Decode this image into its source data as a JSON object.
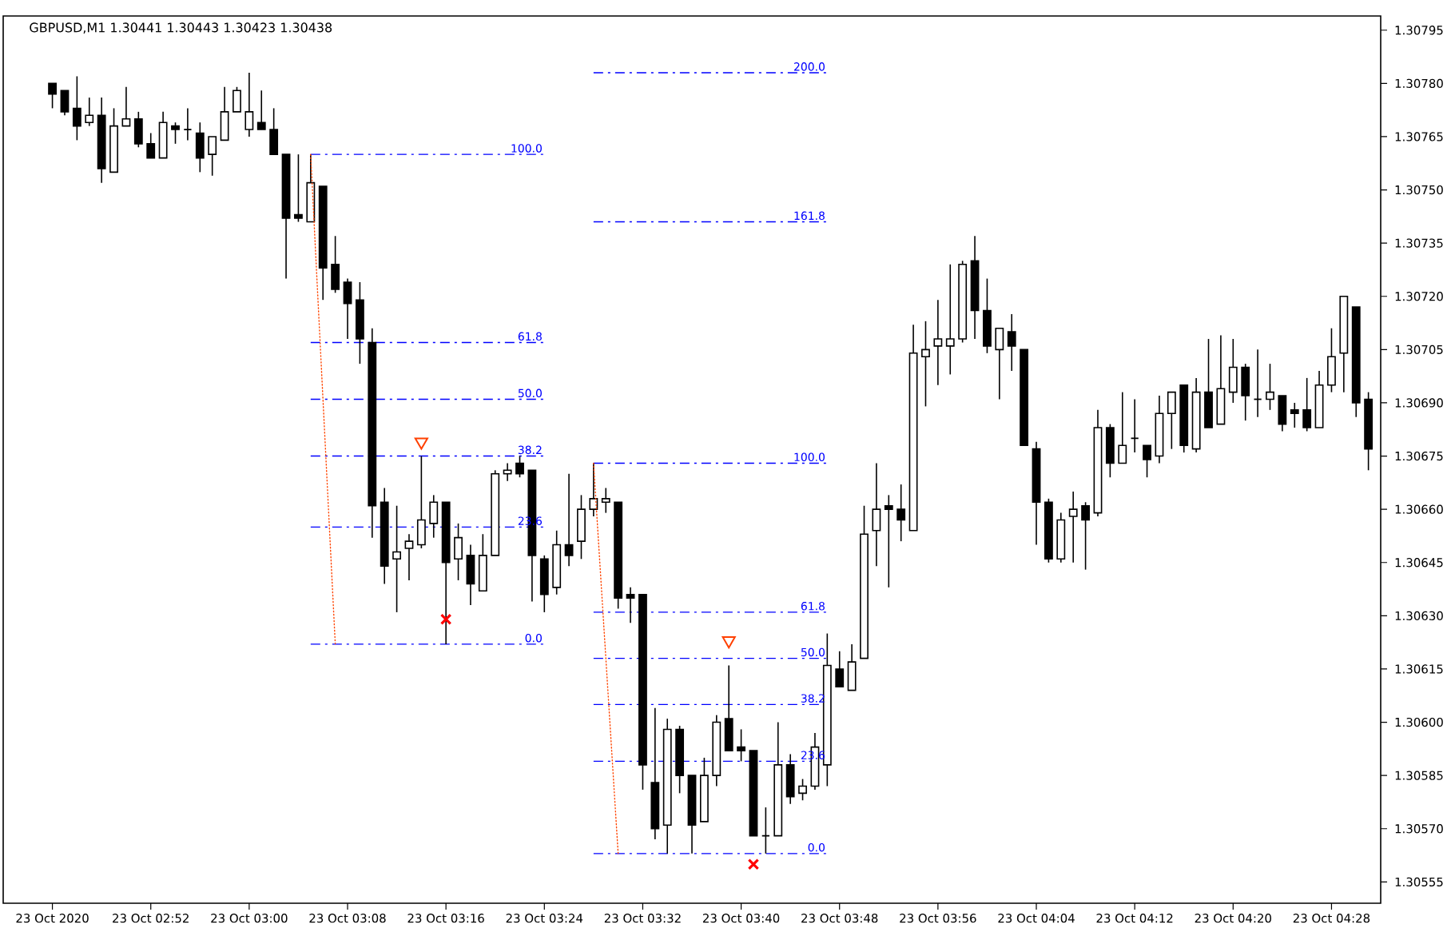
{
  "chart_data": {
    "type": "candlestick",
    "title": "GBPUSD,M1  1.30441 1.30443 1.30423 1.30438",
    "color": "#000000",
    "x": [
      "2020-10-23T02:44",
      "2020-10-23T02:45",
      "2020-10-23T02:46",
      "2020-10-23T02:47",
      "2020-10-23T02:48",
      "2020-10-23T02:49",
      "2020-10-23T02:50",
      "2020-10-23T02:51",
      "2020-10-23T02:52",
      "2020-10-23T02:53",
      "2020-10-23T02:54",
      "2020-10-23T02:55",
      "2020-10-23T02:56",
      "2020-10-23T02:57",
      "2020-10-23T02:58",
      "2020-10-23T02:59",
      "2020-10-23T03:00",
      "2020-10-23T03:01",
      "2020-10-23T03:02",
      "2020-10-23T03:03",
      "2020-10-23T03:04",
      "2020-10-23T03:05",
      "2020-10-23T03:06",
      "2020-10-23T03:07",
      "2020-10-23T03:08",
      "2020-10-23T03:09",
      "2020-10-23T03:10",
      "2020-10-23T03:11",
      "2020-10-23T03:12",
      "2020-10-23T03:13",
      "2020-10-23T03:14",
      "2020-10-23T03:15",
      "2020-10-23T03:16",
      "2020-10-23T03:17",
      "2020-10-23T03:18",
      "2020-10-23T03:19",
      "2020-10-23T03:20",
      "2020-10-23T03:21",
      "2020-10-23T03:22",
      "2020-10-23T03:23",
      "2020-10-23T03:24",
      "2020-10-23T03:25",
      "2020-10-23T03:26",
      "2020-10-23T03:27",
      "2020-10-23T03:28",
      "2020-10-23T03:29",
      "2020-10-23T03:30",
      "2020-10-23T03:31",
      "2020-10-23T03:32",
      "2020-10-23T03:33",
      "2020-10-23T03:34",
      "2020-10-23T03:35",
      "2020-10-23T03:36",
      "2020-10-23T03:37",
      "2020-10-23T03:38",
      "2020-10-23T03:39",
      "2020-10-23T03:40",
      "2020-10-23T03:41",
      "2020-10-23T03:42",
      "2020-10-23T03:43",
      "2020-10-23T03:44",
      "2020-10-23T03:45",
      "2020-10-23T03:46",
      "2020-10-23T03:47",
      "2020-10-23T03:48",
      "2020-10-23T03:49",
      "2020-10-23T03:50",
      "2020-10-23T03:51",
      "2020-10-23T03:52",
      "2020-10-23T03:53",
      "2020-10-23T03:54",
      "2020-10-23T03:55",
      "2020-10-23T03:56",
      "2020-10-23T03:57",
      "2020-10-23T03:58",
      "2020-10-23T03:59",
      "2020-10-23T04:00",
      "2020-10-23T04:01",
      "2020-10-23T04:02",
      "2020-10-23T04:03",
      "2020-10-23T04:04",
      "2020-10-23T04:05",
      "2020-10-23T04:06",
      "2020-10-23T04:07",
      "2020-10-23T04:08",
      "2020-10-23T04:09",
      "2020-10-23T04:10",
      "2020-10-23T04:11",
      "2020-10-23T04:12",
      "2020-10-23T04:13",
      "2020-10-23T04:14",
      "2020-10-23T04:15",
      "2020-10-23T04:16",
      "2020-10-23T04:17",
      "2020-10-23T04:18",
      "2020-10-23T04:19",
      "2020-10-23T04:20",
      "2020-10-23T04:21",
      "2020-10-23T04:22",
      "2020-10-23T04:23",
      "2020-10-23T04:24",
      "2020-10-23T04:25",
      "2020-10-23T04:26",
      "2020-10-23T04:27",
      "2020-10-23T04:28",
      "2020-10-23T04:29",
      "2020-10-23T04:30",
      "2020-10-23T04:31"
    ],
    "ohlc": [
      [
        1.3078,
        1.3078,
        1.30773,
        1.30777
      ],
      [
        1.30778,
        1.30778,
        1.30771,
        1.30772
      ],
      [
        1.30773,
        1.30782,
        1.30764,
        1.30768
      ],
      [
        1.30769,
        1.30776,
        1.30768,
        1.30771
      ],
      [
        1.30771,
        1.30776,
        1.30752,
        1.30756
      ],
      [
        1.30755,
        1.30773,
        1.30755,
        1.30768
      ],
      [
        1.30768,
        1.30779,
        1.30768,
        1.3077
      ],
      [
        1.3077,
        1.30772,
        1.30762,
        1.30763
      ],
      [
        1.30763,
        1.30766,
        1.30759,
        1.30759
      ],
      [
        1.30759,
        1.30772,
        1.30759,
        1.30769
      ],
      [
        1.30768,
        1.30769,
        1.30763,
        1.30767
      ],
      [
        1.30767,
        1.30773,
        1.30764,
        1.30767
      ],
      [
        1.30766,
        1.30769,
        1.30755,
        1.30759
      ],
      [
        1.3076,
        1.30765,
        1.30754,
        1.30765
      ],
      [
        1.30764,
        1.30779,
        1.30764,
        1.30772
      ],
      [
        1.30772,
        1.30779,
        1.30772,
        1.30778
      ],
      [
        1.30767,
        1.30783,
        1.30765,
        1.30772
      ],
      [
        1.30769,
        1.30778,
        1.30767,
        1.30767
      ],
      [
        1.30767,
        1.30773,
        1.3076,
        1.3076
      ],
      [
        1.3076,
        1.3076,
        1.30725,
        1.30742
      ],
      [
        1.30743,
        1.3076,
        1.30741,
        1.30742
      ],
      [
        1.30741,
        1.3076,
        1.30741,
        1.30752
      ],
      [
        1.30751,
        1.30751,
        1.30719,
        1.30728
      ],
      [
        1.30729,
        1.30737,
        1.30721,
        1.30722
      ],
      [
        1.30724,
        1.30725,
        1.30708,
        1.30718
      ],
      [
        1.30719,
        1.30724,
        1.30701,
        1.30708
      ],
      [
        1.30707,
        1.30711,
        1.30652,
        1.30661
      ],
      [
        1.30662,
        1.30666,
        1.30639,
        1.30644
      ],
      [
        1.30646,
        1.30661,
        1.30631,
        1.30648
      ],
      [
        1.30649,
        1.30653,
        1.3064,
        1.30651
      ],
      [
        1.3065,
        1.30675,
        1.30649,
        1.30657
      ],
      [
        1.30656,
        1.30664,
        1.30652,
        1.30662
      ],
      [
        1.30662,
        1.30662,
        1.30622,
        1.30645
      ],
      [
        1.30646,
        1.30656,
        1.3064,
        1.30652
      ],
      [
        1.30647,
        1.3065,
        1.30633,
        1.30639
      ],
      [
        1.30637,
        1.30653,
        1.30637,
        1.30647
      ],
      [
        1.30647,
        1.30671,
        1.30647,
        1.3067
      ],
      [
        1.3067,
        1.30673,
        1.30668,
        1.30671
      ],
      [
        1.30673,
        1.30675,
        1.30669,
        1.3067
      ],
      [
        1.30671,
        1.30671,
        1.30634,
        1.30647
      ],
      [
        1.30646,
        1.30647,
        1.30631,
        1.30636
      ],
      [
        1.30638,
        1.30654,
        1.30636,
        1.3065
      ],
      [
        1.3065,
        1.3067,
        1.30644,
        1.30647
      ],
      [
        1.30651,
        1.30664,
        1.30646,
        1.3066
      ],
      [
        1.3066,
        1.30673,
        1.30658,
        1.30663
      ],
      [
        1.30662,
        1.30666,
        1.30659,
        1.30663
      ],
      [
        1.30662,
        1.30662,
        1.30632,
        1.30635
      ],
      [
        1.30636,
        1.30638,
        1.30628,
        1.30635
      ],
      [
        1.30636,
        1.30636,
        1.30581,
        1.30588
      ],
      [
        1.30583,
        1.30604,
        1.30567,
        1.3057
      ],
      [
        1.30571,
        1.30601,
        1.30563,
        1.30598
      ],
      [
        1.30598,
        1.30599,
        1.3058,
        1.30585
      ],
      [
        1.30585,
        1.30585,
        1.30563,
        1.30571
      ],
      [
        1.30572,
        1.3059,
        1.30572,
        1.30585
      ],
      [
        1.30585,
        1.30602,
        1.30582,
        1.306
      ],
      [
        1.30601,
        1.30616,
        1.30592,
        1.30592
      ],
      [
        1.30593,
        1.30598,
        1.30589,
        1.30592
      ],
      [
        1.30592,
        1.30592,
        1.30568,
        1.30568
      ],
      [
        1.30568,
        1.30576,
        1.30563,
        1.30568
      ],
      [
        1.30568,
        1.306,
        1.30568,
        1.30588
      ],
      [
        1.30588,
        1.30591,
        1.30577,
        1.30579
      ],
      [
        1.3058,
        1.30584,
        1.30578,
        1.30582
      ],
      [
        1.30582,
        1.30597,
        1.30581,
        1.30593
      ],
      [
        1.30588,
        1.30625,
        1.30582,
        1.30616
      ],
      [
        1.30615,
        1.3062,
        1.3061,
        1.3061
      ],
      [
        1.30609,
        1.30622,
        1.30609,
        1.30617
      ],
      [
        1.30618,
        1.30661,
        1.30618,
        1.30653
      ],
      [
        1.30654,
        1.30673,
        1.30644,
        1.3066
      ],
      [
        1.30661,
        1.30664,
        1.30638,
        1.3066
      ],
      [
        1.3066,
        1.30667,
        1.30651,
        1.30657
      ],
      [
        1.30654,
        1.30712,
        1.30654,
        1.30704
      ],
      [
        1.30703,
        1.30713,
        1.30689,
        1.30705
      ],
      [
        1.30706,
        1.30719,
        1.30695,
        1.30708
      ],
      [
        1.30706,
        1.30729,
        1.30698,
        1.30708
      ],
      [
        1.30708,
        1.3073,
        1.30707,
        1.30729
      ],
      [
        1.3073,
        1.30737,
        1.30708,
        1.30716
      ],
      [
        1.30716,
        1.30725,
        1.30704,
        1.30706
      ],
      [
        1.30705,
        1.30711,
        1.30691,
        1.30711
      ],
      [
        1.3071,
        1.30715,
        1.30699,
        1.30706
      ],
      [
        1.30705,
        1.30705,
        1.30678,
        1.30678
      ],
      [
        1.30677,
        1.30679,
        1.3065,
        1.30662
      ],
      [
        1.30662,
        1.30663,
        1.30645,
        1.30646
      ],
      [
        1.30646,
        1.30659,
        1.30645,
        1.30657
      ],
      [
        1.30658,
        1.30665,
        1.30645,
        1.3066
      ],
      [
        1.30661,
        1.30662,
        1.30643,
        1.30657
      ],
      [
        1.30659,
        1.30688,
        1.30658,
        1.30683
      ],
      [
        1.30683,
        1.30684,
        1.30669,
        1.30673
      ],
      [
        1.30673,
        1.30693,
        1.30673,
        1.30678
      ],
      [
        1.3068,
        1.30691,
        1.30676,
        1.3068
      ],
      [
        1.30678,
        1.30678,
        1.30669,
        1.30674
      ],
      [
        1.30675,
        1.30692,
        1.30673,
        1.30687
      ],
      [
        1.30687,
        1.30693,
        1.30677,
        1.30693
      ],
      [
        1.30695,
        1.30695,
        1.30676,
        1.30678
      ],
      [
        1.30677,
        1.30697,
        1.30676,
        1.30693
      ],
      [
        1.30693,
        1.30708,
        1.30683,
        1.30683
      ],
      [
        1.30684,
        1.30709,
        1.30684,
        1.30694
      ],
      [
        1.30693,
        1.30708,
        1.3069,
        1.307
      ],
      [
        1.307,
        1.30701,
        1.30685,
        1.30692
      ],
      [
        1.30691,
        1.30705,
        1.30686,
        1.30691
      ],
      [
        1.30691,
        1.30701,
        1.30688,
        1.30693
      ],
      [
        1.30692,
        1.30692,
        1.30682,
        1.30684
      ],
      [
        1.30688,
        1.3069,
        1.30683,
        1.30687
      ],
      [
        1.30688,
        1.30697,
        1.30682,
        1.30683
      ],
      [
        1.30683,
        1.30699,
        1.30683,
        1.30695
      ],
      [
        1.30695,
        1.30711,
        1.30693,
        1.30703
      ],
      [
        1.30704,
        1.3072,
        1.30693,
        1.3072
      ],
      [
        1.30717,
        1.30717,
        1.30686,
        1.3069
      ],
      [
        1.30691,
        1.30693,
        1.30671,
        1.30677
      ]
    ],
    "series": [
      {
        "type": "line",
        "color": "#0000ff",
        "line_style": "dashed",
        "x": [
          "2020-10-23T03:05",
          "2020-10-23T03:24"
        ],
        "values": [
          1.3076,
          1.3076
        ]
      },
      {
        "type": "line",
        "color": "#0000ff",
        "line_style": "dashed",
        "x": [
          "2020-10-23T03:05",
          "2020-10-23T03:24"
        ],
        "values": [
          1.30707,
          1.30707
        ]
      },
      {
        "type": "line",
        "color": "#0000ff",
        "line_style": "dashed",
        "x": [
          "2020-10-23T03:05",
          "2020-10-23T03:24"
        ],
        "values": [
          1.30691,
          1.30691
        ]
      },
      {
        "type": "line",
        "color": "#0000ff",
        "line_style": "dashed",
        "x": [
          "2020-10-23T03:05",
          "2020-10-23T03:24"
        ],
        "values": [
          1.30675,
          1.30675
        ]
      },
      {
        "type": "line",
        "color": "#0000ff",
        "line_style": "dashed",
        "x": [
          "2020-10-23T03:05",
          "2020-10-23T03:24"
        ],
        "values": [
          1.30655,
          1.30655
        ]
      },
      {
        "type": "line",
        "color": "#0000ff",
        "line_style": "dashed",
        "x": [
          "2020-10-23T03:05",
          "2020-10-23T03:24"
        ],
        "values": [
          1.30622,
          1.30622
        ]
      },
      {
        "type": "line",
        "color": "#0000ff",
        "line_style": "dashed",
        "x": [
          "2020-10-23T03:28",
          "2020-10-23T03:47"
        ],
        "values": [
          1.30783,
          1.30783
        ]
      },
      {
        "type": "line",
        "color": "#0000ff",
        "line_style": "dashed",
        "x": [
          "2020-10-23T03:28",
          "2020-10-23T03:47"
        ],
        "values": [
          1.30741,
          1.30741
        ]
      },
      {
        "type": "line",
        "color": "#0000ff",
        "line_style": "dashed",
        "x": [
          "2020-10-23T03:28",
          "2020-10-23T03:47"
        ],
        "values": [
          1.30673,
          1.30673
        ]
      },
      {
        "type": "line",
        "color": "#0000ff",
        "line_style": "dashed",
        "x": [
          "2020-10-23T03:28",
          "2020-10-23T03:47"
        ],
        "values": [
          1.30631,
          1.30631
        ]
      },
      {
        "type": "line",
        "color": "#0000ff",
        "line_style": "dashed",
        "x": [
          "2020-10-23T03:28",
          "2020-10-23T03:47"
        ],
        "values": [
          1.30618,
          1.30618
        ]
      },
      {
        "type": "line",
        "color": "#0000ff",
        "line_style": "dashed",
        "x": [
          "2020-10-23T03:28",
          "2020-10-23T03:47"
        ],
        "values": [
          1.30605,
          1.30605
        ]
      },
      {
        "type": "line",
        "color": "#0000ff",
        "line_style": "dashed",
        "x": [
          "2020-10-23T03:28",
          "2020-10-23T03:47"
        ],
        "values": [
          1.30589,
          1.30589
        ]
      },
      {
        "type": "line",
        "color": "#0000ff",
        "line_style": "dashed",
        "x": [
          "2020-10-23T03:28",
          "2020-10-23T03:47"
        ],
        "values": [
          1.30563,
          1.30563
        ]
      },
      {
        "type": "line",
        "color": "#ff4500",
        "line_style": "dotted",
        "x": [
          "2020-10-23T03:05",
          "2020-10-23T03:07"
        ],
        "values": [
          1.3076,
          1.30622
        ]
      },
      {
        "type": "line",
        "color": "#ff4500",
        "line_style": "dotted",
        "x": [
          "2020-10-23T03:28",
          "2020-10-23T03:30"
        ],
        "values": [
          1.30673,
          1.30563
        ]
      },
      {
        "type": "scatter",
        "color": "#ff4000",
        "marker": "triangle",
        "x": [
          "2020-10-23T03:14",
          "2020-10-23T03:39"
        ],
        "values": [
          1.30679,
          1.30623
        ]
      },
      {
        "type": "scatter",
        "color": "#ff0000",
        "marker": "cross",
        "x": [
          "2020-10-23T03:16",
          "2020-10-23T03:41"
        ],
        "values": [
          1.30629,
          1.3056
        ]
      }
    ],
    "annotations": [
      {
        "text": "100.0",
        "x": "2020-10-23T03:24",
        "y": 1.3076
      },
      {
        "text": "61.8",
        "x": "2020-10-23T03:24",
        "y": 1.30707
      },
      {
        "text": "50.0",
        "x": "2020-10-23T03:24",
        "y": 1.30691
      },
      {
        "text": "38.2",
        "x": "2020-10-23T03:24",
        "y": 1.30675
      },
      {
        "text": "23.6",
        "x": "2020-10-23T03:24",
        "y": 1.30655
      },
      {
        "text": "0.0",
        "x": "2020-10-23T03:24",
        "y": 1.30622
      },
      {
        "text": "200.0",
        "x": "2020-10-23T03:47",
        "y": 1.30783
      },
      {
        "text": "161.8",
        "x": "2020-10-23T03:47",
        "y": 1.30741
      },
      {
        "text": "100.0",
        "x": "2020-10-23T03:47",
        "y": 1.30673
      },
      {
        "text": "61.8",
        "x": "2020-10-23T03:47",
        "y": 1.30631
      },
      {
        "text": "50.0",
        "x": "2020-10-23T03:47",
        "y": 1.30618
      },
      {
        "text": "38.2",
        "x": "2020-10-23T03:47",
        "y": 1.30605
      },
      {
        "text": "23.6",
        "x": "2020-10-23T03:47",
        "y": 1.30589
      },
      {
        "text": "0.0",
        "x": "2020-10-23T03:47",
        "y": 1.30563
      }
    ],
    "xlim": [
      "2020-10-23T02:40",
      "2020-10-23T04:32"
    ],
    "xticks": [
      {
        "value": "2020-10-23T02:44",
        "label": "23 Oct 2020"
      },
      {
        "value": "2020-10-23T02:52",
        "label": "23 Oct 02:52"
      },
      {
        "value": "2020-10-23T03:00",
        "label": "23 Oct 03:00"
      },
      {
        "value": "2020-10-23T03:08",
        "label": "23 Oct 03:08"
      },
      {
        "value": "2020-10-23T03:16",
        "label": "23 Oct 03:16"
      },
      {
        "value": "2020-10-23T03:24",
        "label": "23 Oct 03:24"
      },
      {
        "value": "2020-10-23T03:32",
        "label": "23 Oct 03:32"
      },
      {
        "value": "2020-10-23T03:40",
        "label": "23 Oct 03:40"
      },
      {
        "value": "2020-10-23T03:48",
        "label": "23 Oct 03:48"
      },
      {
        "value": "2020-10-23T03:56",
        "label": "23 Oct 03:56"
      },
      {
        "value": "2020-10-23T04:04",
        "label": "23 Oct 04:04"
      },
      {
        "value": "2020-10-23T04:12",
        "label": "23 Oct 04:12"
      },
      {
        "value": "2020-10-23T04:20",
        "label": "23 Oct 04:20"
      },
      {
        "value": "2020-10-23T04:28",
        "label": "23 Oct 04:28"
      }
    ],
    "ylim": [
      1.30549,
      1.30799
    ],
    "yticks": [
      {
        "value": 1.30555,
        "label": "1.30555"
      },
      {
        "value": 1.3057,
        "label": "1.30570"
      },
      {
        "value": 1.30585,
        "label": "1.30585"
      },
      {
        "value": 1.306,
        "label": "1.30600"
      },
      {
        "value": 1.30615,
        "label": "1.30615"
      },
      {
        "value": 1.3063,
        "label": "1.30630"
      },
      {
        "value": 1.30645,
        "label": "1.30645"
      },
      {
        "value": 1.3066,
        "label": "1.30660"
      },
      {
        "value": 1.30675,
        "label": "1.30675"
      },
      {
        "value": 1.3069,
        "label": "1.30690"
      },
      {
        "value": 1.30705,
        "label": "1.30705"
      },
      {
        "value": 1.3072,
        "label": "1.30720"
      },
      {
        "value": 1.30735,
        "label": "1.30735"
      },
      {
        "value": 1.3075,
        "label": "1.30750"
      },
      {
        "value": 1.30765,
        "label": "1.30765"
      },
      {
        "value": 1.3078,
        "label": "1.30780"
      },
      {
        "value": 1.30795,
        "label": "1.30795"
      }
    ]
  }
}
